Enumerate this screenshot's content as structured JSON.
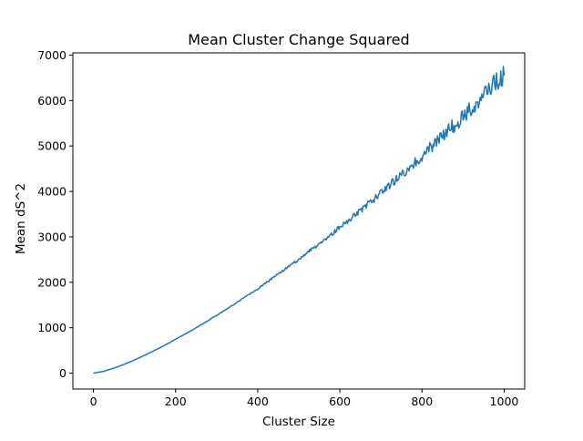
{
  "chart_data": {
    "type": "line",
    "title": "Mean Cluster Change Squared",
    "xlabel": "Cluster Size",
    "ylabel": "Mean dS^2",
    "xlim": [
      -50,
      1050
    ],
    "ylim": [
      -350,
      7050
    ],
    "xticks": [
      0,
      200,
      400,
      600,
      800,
      1000
    ],
    "xtick_labels": [
      "0",
      "200",
      "400",
      "600",
      "800",
      "1000"
    ],
    "yticks": [
      0,
      1000,
      2000,
      3000,
      4000,
      5000,
      6000,
      7000
    ],
    "ytick_labels": [
      "0",
      "1000",
      "2000",
      "3000",
      "4000",
      "5000",
      "6000",
      "7000"
    ],
    "grid": false,
    "series": [
      {
        "color": "#1f77b4",
        "x": [
          0,
          25,
          50,
          75,
          100,
          125,
          150,
          175,
          200,
          225,
          250,
          275,
          300,
          325,
          350,
          375,
          400,
          425,
          450,
          475,
          500,
          525,
          550,
          575,
          600,
          625,
          650,
          675,
          700,
          725,
          750,
          775,
          800,
          825,
          850,
          875,
          900,
          925,
          950,
          975,
          1000
        ],
        "values": [
          0,
          40,
          110,
          195,
          290,
          395,
          505,
          620,
          745,
          870,
          1000,
          1135,
          1275,
          1415,
          1560,
          1710,
          1860,
          2020,
          2180,
          2340,
          2505,
          2680,
          2850,
          3030,
          3210,
          3395,
          3580,
          3770,
          3970,
          4170,
          4370,
          4570,
          4780,
          5000,
          5210,
          5430,
          5650,
          5880,
          6100,
          6340,
          6550
        ]
      }
    ]
  }
}
